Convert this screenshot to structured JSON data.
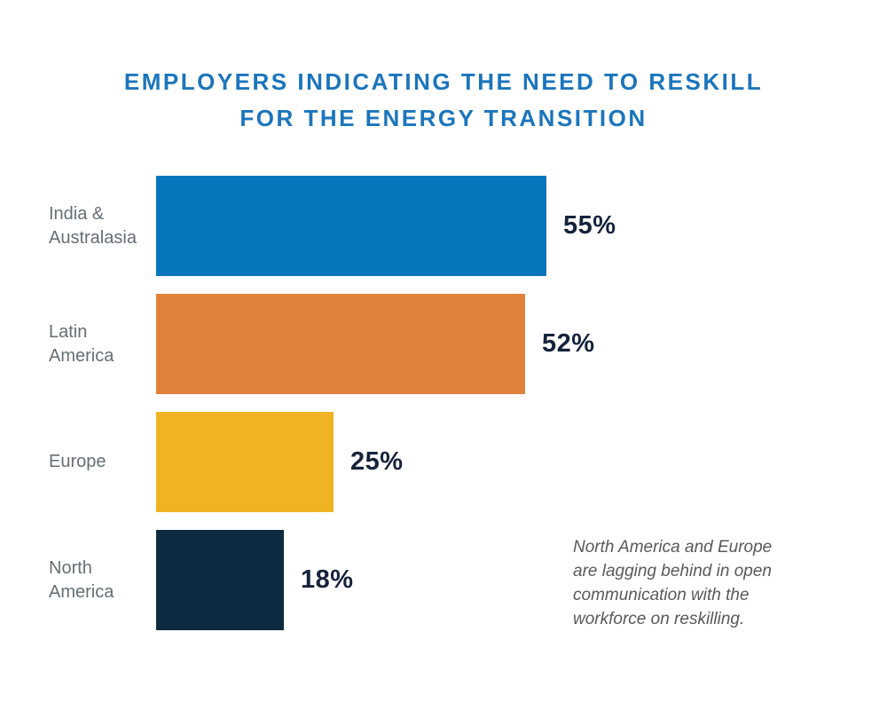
{
  "title": {
    "line1": "EMPLOYERS INDICATING THE NEED TO RESKILL",
    "line2": "FOR THE ENERGY TRANSITION"
  },
  "chart_data": {
    "type": "bar",
    "orientation": "horizontal",
    "title": "EMPLOYERS INDICATING THE NEED TO RESKILL FOR THE ENERGY TRANSITION",
    "categories": [
      "India &\nAustralasia",
      "Latin\nAmerica",
      "Europe",
      "North\nAmerica"
    ],
    "values": [
      55,
      52,
      25,
      18
    ],
    "value_labels": [
      "55%",
      "52%",
      "25%",
      "18%"
    ],
    "bar_colors": [
      "#0775BC",
      "#E2813C",
      "#F0B323",
      "#0D2B40"
    ],
    "xlim": [
      0,
      100
    ],
    "grid": false,
    "legend": false,
    "value_label_position": "right-of-bar"
  },
  "annotation": {
    "text": "North America and Europe\nare lagging behind in open\ncommunication with the\nworkforce on reskilling."
  },
  "colors": {
    "title": "#1B75BC",
    "label": "#656E76",
    "value": "#15233C",
    "annotation": "#58595B",
    "background": "#FFFFFF"
  }
}
